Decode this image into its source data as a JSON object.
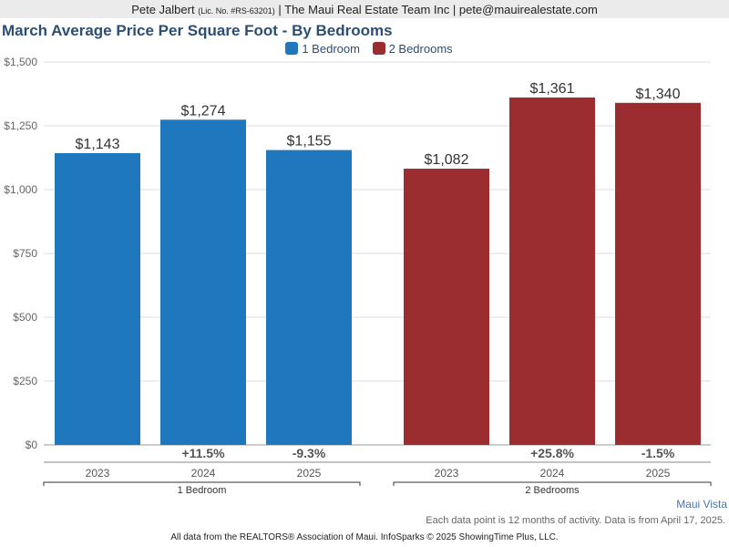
{
  "header": {
    "name": "Pete Jalbert",
    "license": "(Lic. No. #RS-63201)",
    "rest": "| The Maui Real Estate Team Inc | pete@mauirealestate.com"
  },
  "chart_data": {
    "type": "bar",
    "title": "March Average Price Per Square Foot - By Bedrooms",
    "ylim": [
      0,
      1500
    ],
    "yticks": [
      "$0",
      "$250",
      "$500",
      "$750",
      "$1,000",
      "$1,250",
      "$1,500"
    ],
    "grid": true,
    "legend_position": "top",
    "categories": [
      "2023",
      "2024",
      "2025"
    ],
    "series": [
      {
        "name": "1 Bedroom",
        "color": "#1f77bd",
        "values": [
          1143,
          1274,
          1155
        ],
        "labels": [
          "$1,143",
          "$1,274",
          "$1,155"
        ],
        "changes": [
          "",
          "+11.5%",
          "-9.3%"
        ]
      },
      {
        "name": "2 Bedrooms",
        "color": "#9b2d30",
        "values": [
          1082,
          1361,
          1340
        ],
        "labels": [
          "$1,082",
          "$1,361",
          "$1,340"
        ],
        "changes": [
          "",
          "+25.8%",
          "-1.5%"
        ]
      }
    ]
  },
  "watermark": "Maui Vista",
  "note": "Each data point is 12 months of activity. Data is from April 17, 2025.",
  "footer": "All data from the REALTORS® Association of Maui. InfoSparks © 2025 ShowingTime Plus, LLC."
}
